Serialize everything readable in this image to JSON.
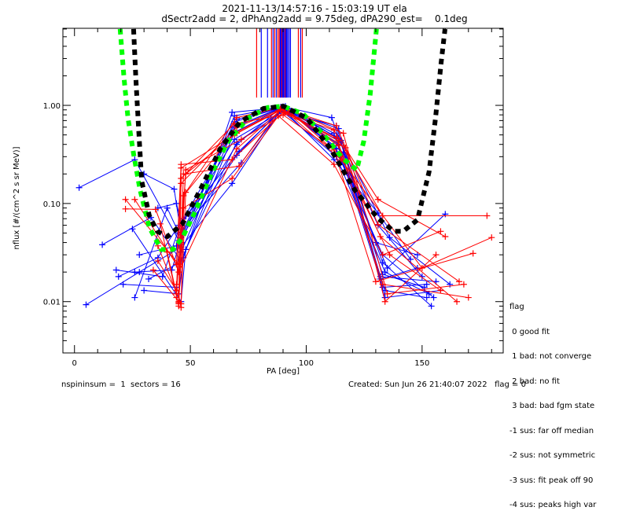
{
  "header": {
    "title_line1": "2021-11-13/14:57:16 - 15:03:19 UT ela",
    "title_line2": "dSectr2add = 2, dPhAng2add = 9.75deg, dPA290_est=    0.1deg"
  },
  "legend": {
    "title": "flag",
    "items": [
      " 0 good fit",
      " 1 bad: not converge",
      " 2 bad: no fit",
      " 3 bad: bad fgm state",
      "-1 sus: far off median",
      "-2 sus: not symmetric",
      "-3 sus: fit peak off 90",
      "-4 sus: peaks high var"
    ]
  },
  "footer": {
    "left": "nspininsum =  1  sectors = 16",
    "right": "Created: Sun Jun 26 21:40:07 2022   flag = 0"
  },
  "chart_data": {
    "type": "line",
    "title": "2021-11-13/14:57:16 - 15:03:19 UT ela",
    "subtitle": "dSectr2add = 2, dPhAng2add = 9.75deg, dPA290_est=    0.1deg",
    "xlabel": "PA [deg]",
    "ylabel": "nflux [#/(cm^2 s sr MeV)]",
    "xlim": [
      -5,
      185
    ],
    "ylim": [
      0.003,
      6.1
    ],
    "yscale": "log",
    "xticks": [
      0,
      50,
      100,
      150
    ],
    "xtick_labels": [
      "0",
      "50",
      "100",
      "150"
    ],
    "xminor_step": 10,
    "yticks": [
      0.01,
      0.1,
      1.0
    ],
    "ytick_labels": [
      "0.01",
      "0.10",
      "1.00"
    ],
    "grid": false,
    "colors": {
      "red": "#ff0000",
      "blue": "#0000ff",
      "green": "#00ff00",
      "black": "#000000"
    },
    "series": [
      {
        "name": "b1",
        "color": "blue",
        "x": [
          2,
          26,
          45,
          70,
          90,
          112,
          133,
          155
        ],
        "y": [
          0.145,
          0.28,
          0.042,
          0.31,
          0.95,
          0.39,
          0.03,
          0.011
        ]
      },
      {
        "name": "b2",
        "color": "blue",
        "x": [
          5,
          28,
          46,
          68,
          89,
          113,
          134,
          153
        ],
        "y": [
          0.0093,
          0.02,
          0.036,
          0.16,
          0.9,
          0.3,
          0.02,
          0.012
        ]
      },
      {
        "name": "b3",
        "color": "blue",
        "x": [
          12,
          33,
          46,
          69,
          90,
          114,
          131,
          150
        ],
        "y": [
          0.038,
          0.072,
          0.026,
          0.53,
          0.96,
          0.46,
          0.06,
          0.018
        ]
      },
      {
        "name": "b4",
        "color": "blue",
        "x": [
          18,
          38,
          45,
          69,
          91,
          113,
          135,
          160
        ],
        "y": [
          0.021,
          0.018,
          0.055,
          0.45,
          0.91,
          0.36,
          0.022,
          0.078
        ]
      },
      {
        "name": "b5",
        "color": "blue",
        "x": [
          21,
          44,
          47,
          70,
          89,
          115,
          132,
          148
        ],
        "y": [
          0.015,
          0.014,
          0.07,
          0.62,
          0.93,
          0.42,
          0.017,
          0.022
        ]
      },
      {
        "name": "b6",
        "color": "blue",
        "x": [
          26,
          42,
          46,
          70,
          90,
          112,
          133,
          152
        ],
        "y": [
          0.02,
          0.021,
          0.045,
          0.72,
          0.97,
          0.52,
          0.014,
          0.015
        ]
      },
      {
        "name": "b7",
        "color": "blue",
        "x": [
          26,
          40,
          45,
          72,
          89,
          113,
          132,
          156
        ],
        "y": [
          0.011,
          0.09,
          0.05,
          0.26,
          0.88,
          0.62,
          0.018,
          0.016
        ]
      },
      {
        "name": "b8",
        "color": "blue",
        "x": [
          30,
          45,
          47,
          68,
          90,
          116,
          133,
          154
        ],
        "y": [
          0.013,
          0.012,
          0.028,
          0.85,
          0.95,
          0.33,
          0.025,
          0.009
        ]
      },
      {
        "name": "b9",
        "color": "blue",
        "x": [
          25,
          46,
          48,
          70,
          91,
          114,
          134,
          158
        ],
        "y": [
          0.055,
          0.01,
          0.034,
          0.42,
          0.9,
          0.58,
          0.011,
          0.013
        ]
      },
      {
        "name": "b10",
        "color": "blue",
        "x": [
          28,
          44,
          46,
          69,
          89,
          112,
          131,
          145
        ],
        "y": [
          0.03,
          0.037,
          0.04,
          0.78,
          0.96,
          0.28,
          0.08,
          0.027
        ]
      },
      {
        "name": "b11",
        "color": "blue",
        "x": [
          19,
          36,
          45,
          71,
          90,
          113,
          134,
          152
        ],
        "y": [
          0.018,
          0.028,
          0.06,
          0.34,
          0.92,
          0.48,
          0.013,
          0.011
        ]
      },
      {
        "name": "b12",
        "color": "blue",
        "x": [
          32,
          44,
          46,
          69,
          90,
          111,
          130,
          148
        ],
        "y": [
          0.017,
          0.024,
          0.032,
          0.6,
          0.97,
          0.75,
          0.04,
          0.03
        ]
      },
      {
        "name": "b13",
        "color": "blue",
        "x": [
          36,
          44,
          47,
          70,
          89,
          114,
          133,
          151
        ],
        "y": [
          0.09,
          0.1,
          0.052,
          0.4,
          0.94,
          0.4,
          0.019,
          0.014
        ]
      },
      {
        "name": "b14",
        "color": "blue",
        "x": [
          30,
          43,
          46,
          69,
          91,
          115,
          136,
          162
        ],
        "y": [
          0.2,
          0.14,
          0.048,
          0.68,
          0.98,
          0.44,
          0.045,
          0.015
        ]
      },
      {
        "name": "r1",
        "color": "red",
        "x": [
          22,
          45,
          48,
          69,
          90,
          113,
          131,
          166
        ],
        "y": [
          0.11,
          0.024,
          0.2,
          0.5,
          0.93,
          0.62,
          0.061,
          0.016
        ]
      },
      {
        "name": "r2",
        "color": "red",
        "x": [
          22,
          35,
          45,
          70,
          89,
          114,
          133,
          178
        ],
        "y": [
          0.088,
          0.087,
          0.02,
          0.36,
          0.9,
          0.44,
          0.075,
          0.075
        ]
      },
      {
        "name": "r3",
        "color": "red",
        "x": [
          26,
          44,
          46,
          68,
          90,
          112,
          131,
          160
        ],
        "y": [
          0.11,
          0.024,
          0.25,
          0.28,
          0.85,
          0.56,
          0.11,
          0.046
        ]
      },
      {
        "name": "r4",
        "color": "red",
        "x": [
          34,
          45,
          46,
          70,
          91,
          115,
          136,
          158
        ],
        "y": [
          0.021,
          0.01,
          0.16,
          0.6,
          0.95,
          0.3,
          0.03,
          0.013
        ]
      },
      {
        "name": "r5",
        "color": "red",
        "x": [
          40,
          44,
          47,
          69,
          88,
          113,
          133,
          170
        ],
        "y": [
          0.032,
          0.012,
          0.12,
          0.52,
          0.88,
          0.47,
          0.015,
          0.011
        ]
      },
      {
        "name": "r6",
        "color": "red",
        "x": [
          36,
          46,
          48,
          70,
          90,
          116,
          135,
          168
        ],
        "y": [
          0.037,
          0.0095,
          0.13,
          0.75,
          0.96,
          0.52,
          0.012,
          0.015
        ]
      },
      {
        "name": "r7",
        "color": "red",
        "x": [
          37,
          45,
          47,
          71,
          89,
          114,
          132,
          165
        ],
        "y": [
          0.062,
          0.009,
          0.2,
          0.24,
          0.93,
          0.39,
          0.046,
          0.01
        ]
      },
      {
        "name": "r8",
        "color": "red",
        "x": [
          36,
          44,
          46,
          69,
          90,
          112,
          130,
          172
        ],
        "y": [
          0.026,
          0.013,
          0.18,
          0.65,
          0.8,
          0.35,
          0.016,
          0.031
        ]
      },
      {
        "name": "r9",
        "color": "red",
        "x": [
          44,
          45,
          48,
          72,
          92,
          117,
          134,
          156
        ],
        "y": [
          0.011,
          0.0098,
          0.22,
          0.45,
          0.86,
          0.37,
          0.01,
          0.03
        ]
      },
      {
        "name": "r10",
        "color": "red",
        "x": [
          44,
          46,
          47,
          68,
          88,
          112,
          133,
          158
        ],
        "y": [
          0.015,
          0.0087,
          0.09,
          0.18,
          0.78,
          0.25,
          0.03,
          0.052
        ]
      },
      {
        "name": "r11",
        "color": "red",
        "x": [
          45,
          45,
          46,
          70,
          90,
          115,
          150,
          180
        ],
        "y": [
          0.0095,
          0.0098,
          0.23,
          0.52,
          0.92,
          0.28,
          0.022,
          0.045
        ]
      }
    ],
    "vlines": [
      {
        "x": 78.6,
        "color": "red"
      },
      {
        "x": 80.6,
        "color": "blue"
      },
      {
        "x": 83.3,
        "color": "blue"
      },
      {
        "x": 85.0,
        "color": "red"
      },
      {
        "x": 85.7,
        "color": "blue"
      },
      {
        "x": 86.4,
        "color": "red"
      },
      {
        "x": 87.1,
        "color": "blue"
      },
      {
        "x": 87.8,
        "color": "red"
      },
      {
        "x": 88.4,
        "color": "red"
      },
      {
        "x": 88.8,
        "color": "blue"
      },
      {
        "x": 89.1,
        "color": "blue"
      },
      {
        "x": 89.5,
        "color": "red"
      },
      {
        "x": 89.8,
        "color": "blue"
      },
      {
        "x": 90.2,
        "color": "blue"
      },
      {
        "x": 90.6,
        "color": "blue"
      },
      {
        "x": 90.9,
        "color": "red"
      },
      {
        "x": 91.2,
        "color": "blue"
      },
      {
        "x": 91.6,
        "color": "blue"
      },
      {
        "x": 92.0,
        "color": "blue"
      },
      {
        "x": 92.6,
        "color": "blue"
      },
      {
        "x": 93.2,
        "color": "blue"
      },
      {
        "x": 96.6,
        "color": "red"
      },
      {
        "x": 97.6,
        "color": "blue"
      },
      {
        "x": 98.3,
        "color": "red"
      }
    ],
    "vline_top_flux": 6.1,
    "vline_bottom_flux": 1.2,
    "fits": [
      {
        "name": "green-fit",
        "color": "green",
        "x": [
          19.7,
          21.4,
          23.1,
          25.5,
          28.2,
          32.3,
          37.4,
          42.5,
          46.6,
          52,
          59.5,
          66.3,
          74.8,
          83.3,
          90.1,
          98.6,
          107,
          115.6,
          121.8,
          124.8,
          127.6,
          130.3
        ],
        "y": [
          6,
          1.87,
          0.74,
          0.32,
          0.14,
          0.057,
          0.034,
          0.034,
          0.045,
          0.082,
          0.21,
          0.43,
          0.74,
          0.95,
          0.98,
          0.82,
          0.52,
          0.29,
          0.22,
          0.43,
          1.29,
          6
        ]
      },
      {
        "name": "black-fit",
        "color": "black",
        "x": [
          25.5,
          26.5,
          27.6,
          29,
          32.3,
          35.7,
          40.1,
          46.6,
          54.4,
          62.9,
          71.4,
          81.6,
          90.1,
          100.3,
          110.5,
          120.7,
          130.9,
          137.8,
          141.8,
          148,
          153,
          155.8,
          158.2,
          159.9
        ],
        "y": [
          6,
          1.87,
          0.62,
          0.17,
          0.075,
          0.052,
          0.046,
          0.062,
          0.14,
          0.36,
          0.68,
          0.93,
          0.98,
          0.74,
          0.36,
          0.14,
          0.071,
          0.052,
          0.052,
          0.068,
          0.21,
          0.74,
          2.7,
          6
        ]
      }
    ]
  }
}
